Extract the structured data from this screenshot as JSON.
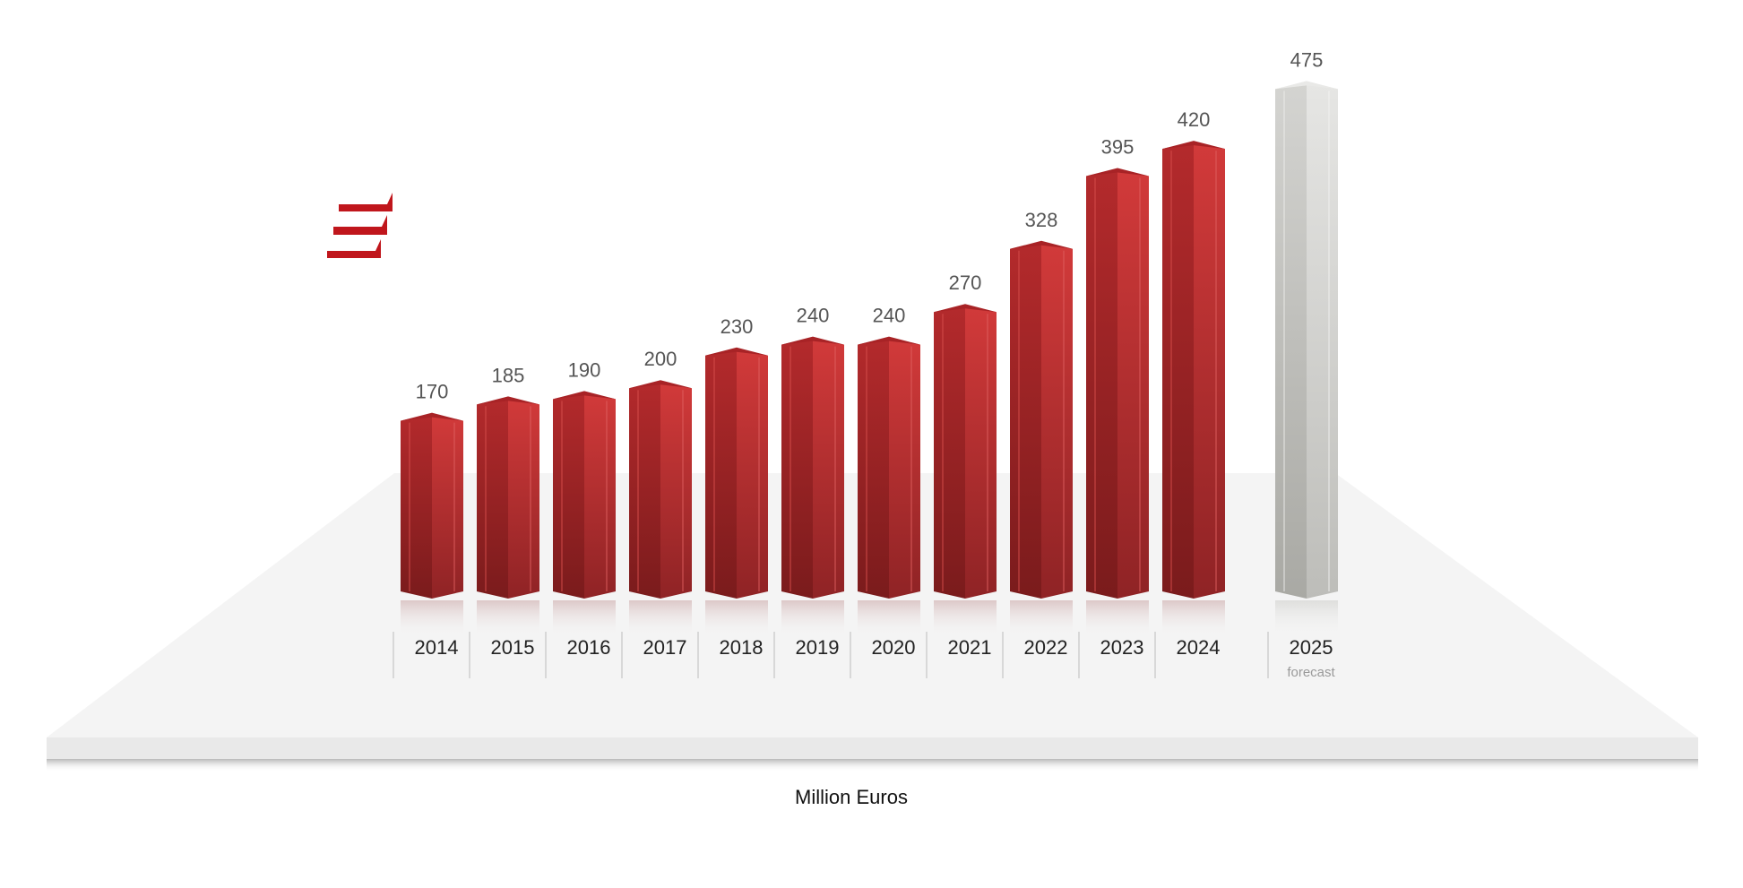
{
  "chart_data": {
    "type": "bar",
    "categories": [
      "2014",
      "2015",
      "2016",
      "2017",
      "2018",
      "2019",
      "2020",
      "2021",
      "2022",
      "2023",
      "2024",
      "2025"
    ],
    "values": [
      170,
      185,
      190,
      200,
      230,
      240,
      240,
      270,
      328,
      395,
      420,
      475
    ],
    "forecast_index": 11,
    "forecast_note": "forecast",
    "unit_label": "Million Euros",
    "ylim": [
      0,
      500
    ],
    "grid": false,
    "legend": "none",
    "colors": {
      "bar": "#c62f31",
      "bar_dark": "#8e1c1e",
      "bar_top": "#a82326",
      "forecast": "#dcdcda",
      "forecast_dark": "#b5b5b1",
      "forecast_top": "#e9e9e7",
      "platform": "#f3f3f3",
      "logo": "#c0161c"
    }
  }
}
